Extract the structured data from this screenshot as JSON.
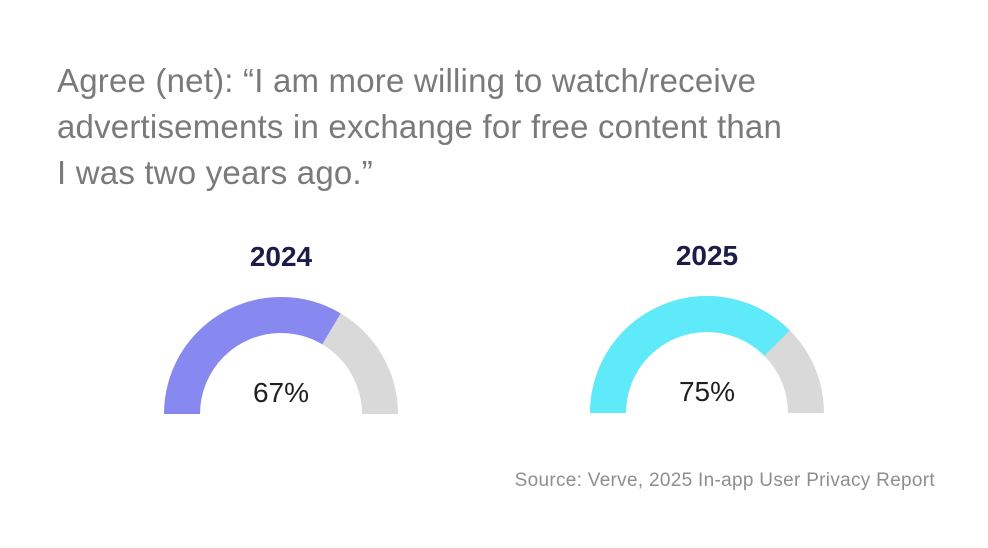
{
  "title": {
    "lines": [
      "Agree (net): “I am more willing to watch/receive",
      "advertisements in exchange for free content than",
      "I was two years ago.”"
    ],
    "full": "Agree (net): “I am more willing to watch/receive advertisements in exchange for free content than I was two years ago.”"
  },
  "source": "Source: Verve, 2025 In-app User Privacy Report",
  "colors": {
    "background": "#ffffff",
    "title_text": "#7a7a7a",
    "year_text": "#1b1c49",
    "value_text": "#1f1f1f",
    "source_text": "#8e8e90"
  },
  "chart_data": {
    "type": "gauge",
    "shape": "semicircle-donut",
    "max": 100,
    "track_color": "#d9d9d9",
    "charts": [
      {
        "label": "2024",
        "value": 67,
        "value_label": "67%",
        "color": "#8789f0"
      },
      {
        "label": "2025",
        "value": 75,
        "value_label": "75%",
        "color": "#5eeaf8"
      }
    ]
  }
}
